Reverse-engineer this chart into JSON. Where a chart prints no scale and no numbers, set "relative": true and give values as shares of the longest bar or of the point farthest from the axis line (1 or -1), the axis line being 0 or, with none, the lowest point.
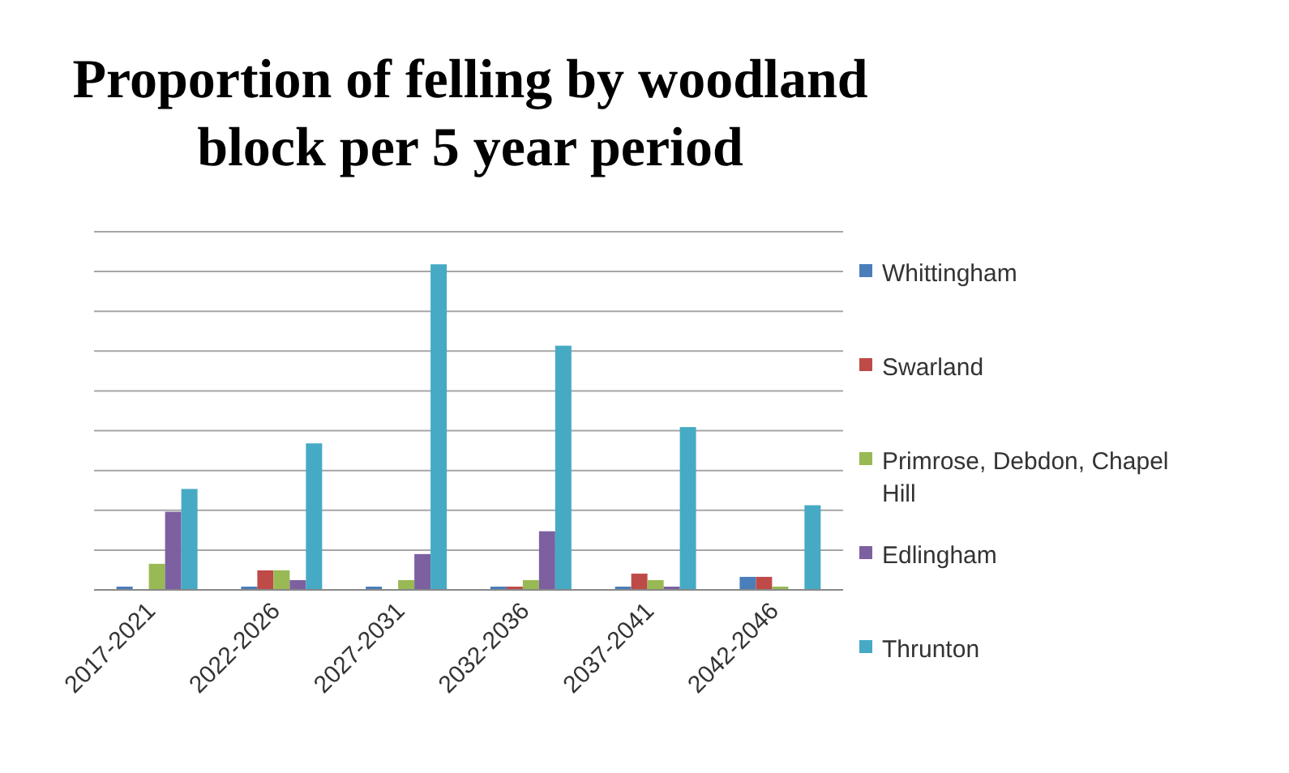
{
  "chart_data": {
    "type": "bar",
    "title": "Proportion of felling by woodland block per 5 year period",
    "categories": [
      "2017-2021",
      "2022-2026",
      "2027-2031",
      "2032-2036",
      "2037-2041",
      "2042-2046"
    ],
    "relative": true,
    "grid": "y",
    "legend": "right",
    "series": [
      {
        "name": "Whittingham",
        "color": "#4a7ebb",
        "values": [
          0.01,
          0.01,
          0.01,
          0.01,
          0.01,
          0.04
        ]
      },
      {
        "name": "Swarland",
        "color": "#be4b48",
        "values": [
          0,
          0.06,
          0,
          0.01,
          0.05,
          0.04
        ]
      },
      {
        "name": "Primrose, Debdon, Chapel Hill",
        "color": "#98b954",
        "values": [
          0.08,
          0.06,
          0.03,
          0.03,
          0.03,
          0.01
        ]
      },
      {
        "name": "Edlingham",
        "color": "#7d60a0",
        "values": [
          0.24,
          0.03,
          0.11,
          0.18,
          0.01,
          0
        ]
      },
      {
        "name": "Thrunton",
        "color": "#46aac5",
        "values": [
          0.31,
          0.45,
          1,
          0.75,
          0.5,
          0.26
        ]
      }
    ]
  }
}
